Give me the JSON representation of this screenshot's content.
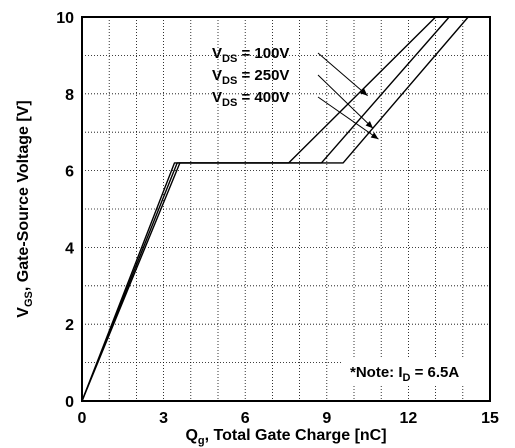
{
  "chart_data": {
    "type": "line",
    "title": "",
    "xlabel": {
      "main": "Q",
      "sub": "g",
      "rest": ", Total Gate Charge [nC]"
    },
    "ylabel": {
      "main": "V",
      "sub": "GS",
      "rest": ", Gate-Source Voltage [V]"
    },
    "xlim": [
      0,
      15
    ],
    "ylim": [
      0,
      10
    ],
    "xticks": [
      "0",
      "3",
      "6",
      "9",
      "12",
      "15"
    ],
    "yticks": [
      "0",
      "2",
      "4",
      "6",
      "8",
      "10"
    ],
    "grid": true,
    "series": [
      {
        "name": "VDS = 100V",
        "label_main": "V",
        "label_sub": "DS",
        "label_rest": " = 100V",
        "x": [
          0,
          3.4,
          7.6,
          13.0
        ],
        "y": [
          0,
          6.2,
          6.2,
          10.0
        ]
      },
      {
        "name": "VDS = 250V",
        "label_main": "V",
        "label_sub": "DS",
        "label_rest": " = 250V",
        "x": [
          0,
          3.5,
          8.8,
          13.5
        ],
        "y": [
          0,
          6.2,
          6.2,
          10.0
        ]
      },
      {
        "name": "VDS = 400V",
        "label_main": "V",
        "label_sub": "DS",
        "label_rest": " = 400V",
        "x": [
          0,
          3.6,
          9.6,
          14.2
        ],
        "y": [
          0,
          6.2,
          6.2,
          10.0
        ]
      }
    ],
    "note": {
      "prefix": "*Note: I",
      "sub": "D",
      "rest": " = 6.5A"
    }
  }
}
